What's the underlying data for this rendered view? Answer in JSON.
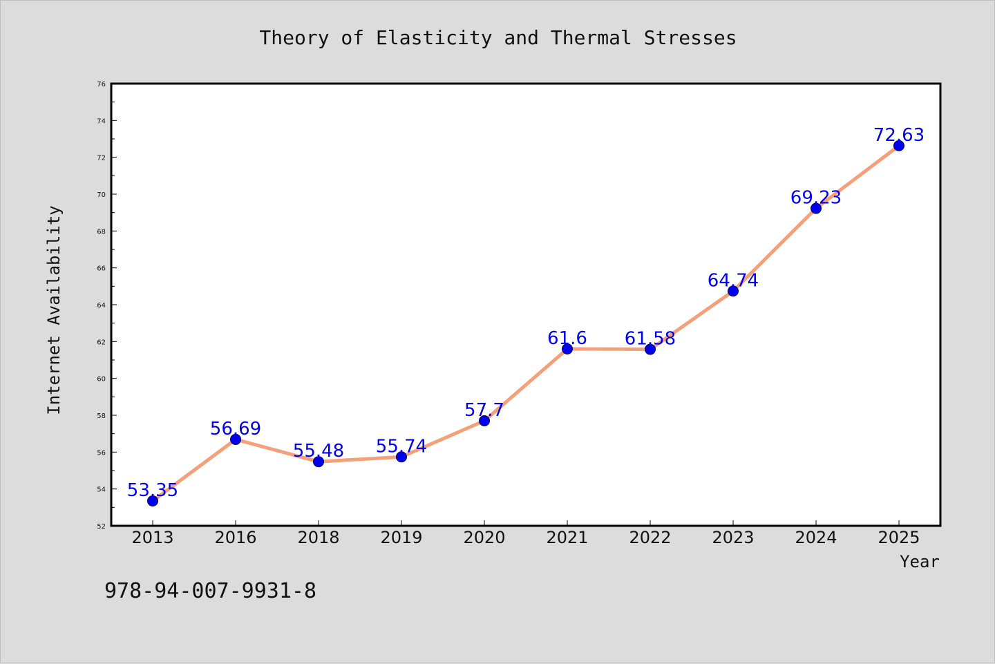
{
  "chart_data": {
    "type": "line",
    "title": "Theory of Elasticity and Thermal Stresses",
    "xlabel": "Year",
    "ylabel": "Internet Availability",
    "categories": [
      "2013",
      "2016",
      "2018",
      "2019",
      "2020",
      "2021",
      "2022",
      "2023",
      "2024",
      "2025"
    ],
    "series": [
      {
        "values": [
          53.35,
          56.69,
          55.48,
          55.74,
          57.7,
          61.6,
          61.58,
          64.74,
          69.23,
          72.63
        ],
        "data_labels": [
          "53.35",
          "56.69",
          "55.48",
          "55.74",
          "57.7",
          "61.6",
          "61.58",
          "64.74",
          "69.23",
          "72.63"
        ],
        "line_color": "#f4a07a",
        "marker_color": "#0000ee"
      }
    ],
    "ylim": [
      52,
      76
    ],
    "yticks": [
      52,
      54,
      56,
      58,
      60,
      62,
      64,
      66,
      68,
      70,
      72,
      74,
      76
    ],
    "grid": false,
    "legend": "none",
    "plot_background": "#ffffff",
    "figure_background": "#dcdcdc"
  },
  "caption": "978-94-007-9931-8"
}
